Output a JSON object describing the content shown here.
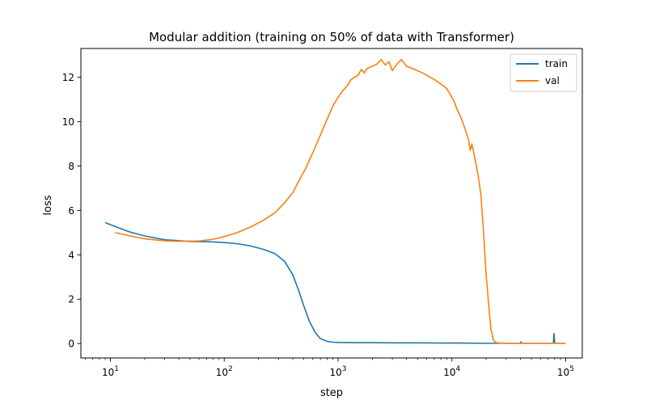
{
  "chart_data": {
    "type": "line",
    "title": "Modular addition (training on 50% of data with Transformer)",
    "xlabel": "step",
    "ylabel": "loss",
    "xscale": "log",
    "xlim": [
      5.5,
      140000
    ],
    "ylim": [
      -0.65,
      13.3
    ],
    "grid": false,
    "legend_position": "top-right",
    "x_ticks": [
      {
        "value": 10,
        "base": "10",
        "exp": "1"
      },
      {
        "value": 100,
        "base": "10",
        "exp": "2"
      },
      {
        "value": 1000,
        "base": "10",
        "exp": "3"
      },
      {
        "value": 10000,
        "base": "10",
        "exp": "4"
      },
      {
        "value": 100000,
        "base": "10",
        "exp": "5"
      }
    ],
    "y_ticks": [
      {
        "value": 0,
        "label": "0"
      },
      {
        "value": 2,
        "label": "2"
      },
      {
        "value": 4,
        "label": "4"
      },
      {
        "value": 6,
        "label": "6"
      },
      {
        "value": 8,
        "label": "8"
      },
      {
        "value": 10,
        "label": "10"
      },
      {
        "value": 12,
        "label": "12"
      }
    ],
    "series": [
      {
        "name": "train",
        "color": "#1f77b4",
        "points": [
          [
            9,
            5.45
          ],
          [
            12,
            5.2
          ],
          [
            15,
            5.02
          ],
          [
            20,
            4.85
          ],
          [
            30,
            4.68
          ],
          [
            50,
            4.6
          ],
          [
            80,
            4.58
          ],
          [
            100,
            4.55
          ],
          [
            130,
            4.5
          ],
          [
            170,
            4.4
          ],
          [
            220,
            4.25
          ],
          [
            280,
            4.05
          ],
          [
            340,
            3.7
          ],
          [
            400,
            3.1
          ],
          [
            450,
            2.4
          ],
          [
            500,
            1.7
          ],
          [
            560,
            1.0
          ],
          [
            630,
            0.5
          ],
          [
            700,
            0.22
          ],
          [
            800,
            0.1
          ],
          [
            900,
            0.06
          ],
          [
            1000,
            0.05
          ],
          [
            1500,
            0.04
          ],
          [
            2000,
            0.04
          ],
          [
            3000,
            0.03
          ],
          [
            5000,
            0.03
          ],
          [
            8000,
            0.02
          ],
          [
            12000,
            0.02
          ],
          [
            20000,
            0.01
          ],
          [
            40000,
            0.01
          ],
          [
            40500,
            0.08
          ],
          [
            41000,
            0.01
          ],
          [
            60000,
            0.01
          ],
          [
            78000,
            0.01
          ],
          [
            79000,
            0.45
          ],
          [
            80000,
            0.05
          ],
          [
            81000,
            0.01
          ],
          [
            100000,
            0.01
          ]
        ]
      },
      {
        "name": "val",
        "color": "#ff7f0e",
        "points": [
          [
            11,
            5.0
          ],
          [
            15,
            4.85
          ],
          [
            20,
            4.72
          ],
          [
            30,
            4.63
          ],
          [
            40,
            4.61
          ],
          [
            60,
            4.62
          ],
          [
            80,
            4.7
          ],
          [
            100,
            4.82
          ],
          [
            130,
            5.0
          ],
          [
            170,
            5.25
          ],
          [
            220,
            5.55
          ],
          [
            280,
            5.9
          ],
          [
            340,
            6.35
          ],
          [
            400,
            6.8
          ],
          [
            460,
            7.4
          ],
          [
            520,
            7.9
          ],
          [
            600,
            8.6
          ],
          [
            700,
            9.4
          ],
          [
            800,
            10.1
          ],
          [
            900,
            10.7
          ],
          [
            1000,
            11.1
          ],
          [
            1100,
            11.4
          ],
          [
            1200,
            11.6
          ],
          [
            1300,
            11.9
          ],
          [
            1400,
            12.0
          ],
          [
            1500,
            12.1
          ],
          [
            1600,
            12.35
          ],
          [
            1700,
            12.2
          ],
          [
            1800,
            12.4
          ],
          [
            2000,
            12.5
          ],
          [
            2200,
            12.6
          ],
          [
            2400,
            12.8
          ],
          [
            2600,
            12.55
          ],
          [
            2800,
            12.7
          ],
          [
            3000,
            12.3
          ],
          [
            3300,
            12.6
          ],
          [
            3600,
            12.8
          ],
          [
            4000,
            12.5
          ],
          [
            4500,
            12.4
          ],
          [
            5000,
            12.3
          ],
          [
            5500,
            12.2
          ],
          [
            6000,
            12.1
          ],
          [
            7000,
            11.9
          ],
          [
            8000,
            11.7
          ],
          [
            9000,
            11.5
          ],
          [
            10000,
            11.1
          ],
          [
            10500,
            10.9
          ],
          [
            11000,
            10.6
          ],
          [
            12000,
            10.2
          ],
          [
            13000,
            9.7
          ],
          [
            14000,
            9.2
          ],
          [
            14500,
            8.7
          ],
          [
            15000,
            9.0
          ],
          [
            16000,
            8.3
          ],
          [
            17000,
            7.6
          ],
          [
            18000,
            6.7
          ],
          [
            19000,
            5.0
          ],
          [
            20000,
            3.1
          ],
          [
            20500,
            2.5
          ],
          [
            21000,
            1.8
          ],
          [
            22000,
            0.7
          ],
          [
            23000,
            0.2
          ],
          [
            24000,
            0.06
          ],
          [
            26000,
            0.02
          ],
          [
            30000,
            0.01
          ],
          [
            50000,
            0.01
          ],
          [
            100000,
            0.01
          ]
        ]
      }
    ]
  }
}
